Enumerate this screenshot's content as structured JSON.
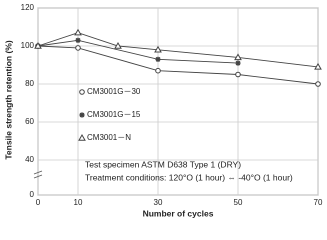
{
  "chart_data": {
    "type": "line",
    "x_label": "Number of cycles",
    "y_label": "Tensile strength retention (%)",
    "xlim": [
      0,
      70
    ],
    "xticks": [
      0,
      10,
      30,
      50,
      70
    ],
    "ylim": [
      0,
      120
    ],
    "yticks": [
      0,
      40,
      60,
      80,
      100,
      120
    ],
    "y_break": [
      0,
      40
    ],
    "grid": true,
    "series": [
      {
        "name": "CM3001G－30",
        "marker": "circle",
        "color": "#444444",
        "x": [
          0,
          10,
          30,
          50,
          70
        ],
        "values": [
          100,
          99,
          87,
          85,
          80
        ]
      },
      {
        "name": "CM3001G－15",
        "marker": "star",
        "color": "#444444",
        "x": [
          0,
          10,
          30,
          50
        ],
        "values": [
          100,
          103,
          93,
          91
        ]
      },
      {
        "name": "CM3001－N",
        "marker": "triangle",
        "color": "#444444",
        "x": [
          0,
          10,
          20,
          30,
          50,
          70
        ],
        "values": [
          100,
          107,
          100,
          98,
          94,
          89
        ]
      }
    ],
    "annotations": [
      "Test specimen ASTM D638 Type 1 (DRY)",
      "Treatment conditions: 120°O (1 hour) ⇔ -40°O (1 hour)"
    ]
  }
}
